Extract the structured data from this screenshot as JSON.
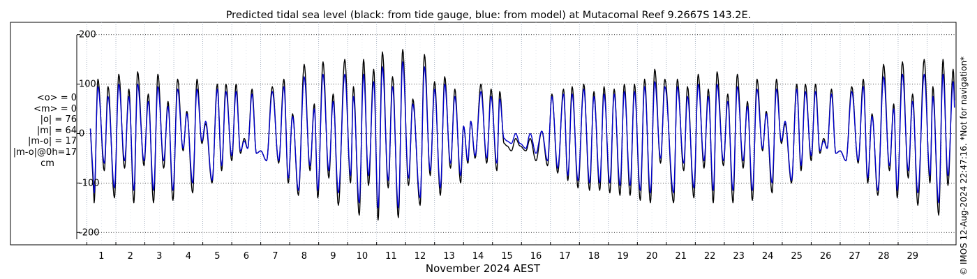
{
  "chart_data": {
    "type": "line",
    "title": "Predicted tidal sea level (black: from tide gauge, blue: from model) at Mutacomal Reef 9.2667S 143.2E.",
    "xlabel": "November 2024 AEST",
    "ylabel": "",
    "x_ticks": [
      "1",
      "2",
      "3",
      "4",
      "5",
      "6",
      "7",
      "8",
      "9",
      "10",
      "11",
      "12",
      "13",
      "14",
      "15",
      "16",
      "17",
      "18",
      "19",
      "20",
      "21",
      "22",
      "23",
      "24",
      "25",
      "26",
      "27",
      "28",
      "29"
    ],
    "y_ticks": [
      200,
      100,
      0,
      -100,
      -200
    ],
    "y_tick_labels": [
      "200",
      "100",
      "0",
      "-100",
      "-200"
    ],
    "xlim": [
      -0.35,
      30
    ],
    "ylim": [
      -225,
      225
    ],
    "grid": true,
    "series": [
      {
        "name": "black",
        "color": "#000000",
        "mean": 0,
        "rms": 76,
        "peaks": [
          [
            0.25,
            -140
          ],
          [
            0.38,
            110
          ],
          [
            0.6,
            -75
          ],
          [
            0.73,
            95
          ],
          [
            0.95,
            -130
          ],
          [
            1.1,
            120
          ],
          [
            1.3,
            -70
          ],
          [
            1.45,
            90
          ],
          [
            1.62,
            -140
          ],
          [
            1.75,
            125
          ],
          [
            1.97,
            -65
          ],
          [
            2.12,
            80
          ],
          [
            2.3,
            -140
          ],
          [
            2.45,
            120
          ],
          [
            2.65,
            -70
          ],
          [
            2.8,
            65
          ],
          [
            2.97,
            -135
          ],
          [
            3.13,
            110
          ],
          [
            3.32,
            -35
          ],
          [
            3.45,
            45
          ],
          [
            3.65,
            -120
          ],
          [
            3.8,
            110
          ],
          [
            3.97,
            -20
          ],
          [
            4.1,
            20
          ],
          [
            4.32,
            -100
          ],
          [
            4.5,
            100
          ],
          [
            4.65,
            -75
          ],
          [
            4.8,
            100
          ],
          [
            5.0,
            -55
          ],
          [
            5.15,
            100
          ],
          [
            5.3,
            -40
          ],
          [
            5.43,
            -10
          ],
          [
            5.55,
            -30
          ],
          [
            5.7,
            90
          ],
          [
            5.85,
            -40
          ],
          [
            6.0,
            -35
          ],
          [
            6.2,
            -55
          ],
          [
            6.4,
            95
          ],
          [
            6.62,
            -60
          ],
          [
            6.8,
            110
          ],
          [
            6.95,
            -100
          ],
          [
            7.1,
            40
          ],
          [
            7.3,
            -125
          ],
          [
            7.5,
            140
          ],
          [
            7.7,
            -75
          ],
          [
            7.85,
            60
          ],
          [
            7.97,
            -130
          ],
          [
            8.15,
            145
          ],
          [
            8.35,
            -90
          ],
          [
            8.5,
            80
          ],
          [
            8.68,
            -145
          ],
          [
            8.9,
            150
          ],
          [
            9.1,
            -100
          ],
          [
            9.2,
            95
          ],
          [
            9.4,
            -165
          ],
          [
            9.55,
            150
          ],
          [
            9.72,
            -105
          ],
          [
            9.9,
            130
          ],
          [
            10.05,
            -175
          ],
          [
            10.2,
            165
          ],
          [
            10.4,
            -110
          ],
          [
            10.55,
            115
          ],
          [
            10.75,
            -170
          ],
          [
            10.9,
            170
          ],
          [
            11.1,
            -105
          ],
          [
            11.25,
            70
          ],
          [
            11.5,
            -145
          ],
          [
            11.65,
            160
          ],
          [
            11.85,
            -85
          ],
          [
            12.0,
            105
          ],
          [
            12.2,
            -125
          ],
          [
            12.35,
            115
          ],
          [
            12.55,
            -70
          ],
          [
            12.7,
            90
          ],
          [
            12.9,
            -100
          ],
          [
            13.0,
            15
          ],
          [
            13.15,
            -60
          ],
          [
            13.25,
            25
          ],
          [
            13.4,
            -50
          ],
          [
            13.6,
            100
          ],
          [
            13.8,
            -60
          ],
          [
            13.95,
            90
          ],
          [
            14.15,
            -75
          ],
          [
            14.25,
            85
          ],
          [
            14.4,
            -20
          ],
          [
            14.5,
            -25
          ],
          [
            14.65,
            -35
          ],
          [
            14.8,
            -10
          ],
          [
            14.95,
            -25
          ],
          [
            15.15,
            -35
          ],
          [
            15.3,
            -10
          ],
          [
            15.5,
            -55
          ],
          [
            15.7,
            5
          ],
          [
            15.9,
            -65
          ],
          [
            16.05,
            80
          ],
          [
            16.25,
            -80
          ],
          [
            16.45,
            90
          ],
          [
            16.6,
            -95
          ],
          [
            16.75,
            95
          ],
          [
            16.95,
            -110
          ],
          [
            17.15,
            100
          ],
          [
            17.35,
            -115
          ],
          [
            17.5,
            85
          ],
          [
            17.7,
            -115
          ],
          [
            17.85,
            95
          ],
          [
            18.05,
            -120
          ],
          [
            18.2,
            90
          ],
          [
            18.4,
            -125
          ],
          [
            18.55,
            100
          ],
          [
            18.75,
            -125
          ],
          [
            18.9,
            100
          ],
          [
            19.1,
            -135
          ],
          [
            19.25,
            110
          ],
          [
            19.45,
            -140
          ],
          [
            19.6,
            130
          ],
          [
            19.8,
            -60
          ],
          [
            19.95,
            110
          ]
        ]
      },
      {
        "name": "blue",
        "color": "#0000cc",
        "mean": 0,
        "rms": 64,
        "peaks": [
          [
            0.25,
            -120
          ],
          [
            0.38,
            95
          ],
          [
            0.6,
            -60
          ],
          [
            0.73,
            75
          ],
          [
            0.95,
            -110
          ],
          [
            1.1,
            100
          ],
          [
            1.3,
            -55
          ],
          [
            1.45,
            75
          ],
          [
            1.62,
            -115
          ],
          [
            1.75,
            100
          ],
          [
            1.97,
            -55
          ],
          [
            2.12,
            65
          ],
          [
            2.3,
            -115
          ],
          [
            2.45,
            95
          ],
          [
            2.65,
            -55
          ],
          [
            2.8,
            55
          ],
          [
            2.97,
            -115
          ],
          [
            3.13,
            90
          ],
          [
            3.32,
            -30
          ],
          [
            3.45,
            40
          ],
          [
            3.65,
            -100
          ],
          [
            3.8,
            90
          ],
          [
            3.97,
            -15
          ],
          [
            4.1,
            25
          ],
          [
            4.32,
            -95
          ],
          [
            4.5,
            90
          ],
          [
            4.65,
            -65
          ],
          [
            4.8,
            85
          ],
          [
            5.0,
            -45
          ],
          [
            5.15,
            85
          ],
          [
            5.3,
            -35
          ],
          [
            5.43,
            -15
          ],
          [
            5.55,
            -30
          ],
          [
            5.7,
            80
          ],
          [
            5.85,
            -40
          ],
          [
            6.0,
            -35
          ],
          [
            6.2,
            -55
          ],
          [
            6.4,
            85
          ],
          [
            6.62,
            -55
          ],
          [
            6.8,
            95
          ],
          [
            6.95,
            -90
          ],
          [
            7.1,
            35
          ],
          [
            7.3,
            -115
          ],
          [
            7.5,
            115
          ],
          [
            7.7,
            -65
          ],
          [
            7.85,
            50
          ],
          [
            7.97,
            -115
          ],
          [
            8.15,
            120
          ],
          [
            8.35,
            -75
          ],
          [
            8.5,
            65
          ],
          [
            8.68,
            -120
          ],
          [
            8.9,
            120
          ],
          [
            9.1,
            -85
          ],
          [
            9.2,
            75
          ],
          [
            9.4,
            -140
          ],
          [
            9.55,
            120
          ],
          [
            9.72,
            -85
          ],
          [
            9.9,
            105
          ],
          [
            10.05,
            -150
          ],
          [
            10.2,
            135
          ],
          [
            10.4,
            -95
          ],
          [
            10.55,
            95
          ],
          [
            10.75,
            -150
          ],
          [
            10.9,
            145
          ],
          [
            11.1,
            -90
          ],
          [
            11.25,
            60
          ],
          [
            11.5,
            -130
          ],
          [
            11.65,
            135
          ],
          [
            11.85,
            -75
          ],
          [
            12.0,
            90
          ],
          [
            12.2,
            -110
          ],
          [
            12.35,
            100
          ],
          [
            12.55,
            -60
          ],
          [
            12.7,
            75
          ],
          [
            12.9,
            -85
          ],
          [
            13.0,
            15
          ],
          [
            13.15,
            -55
          ],
          [
            13.25,
            25
          ],
          [
            13.4,
            -45
          ],
          [
            13.6,
            85
          ],
          [
            13.8,
            -50
          ],
          [
            13.95,
            75
          ],
          [
            14.15,
            -60
          ],
          [
            14.25,
            70
          ],
          [
            14.4,
            -10
          ],
          [
            14.5,
            -15
          ],
          [
            14.65,
            -20
          ],
          [
            14.8,
            0
          ],
          [
            14.95,
            -20
          ],
          [
            15.15,
            -30
          ],
          [
            15.3,
            0
          ],
          [
            15.5,
            -40
          ],
          [
            15.7,
            5
          ],
          [
            15.9,
            -55
          ],
          [
            16.05,
            75
          ],
          [
            16.25,
            -70
          ],
          [
            16.45,
            80
          ],
          [
            16.6,
            -85
          ],
          [
            16.75,
            80
          ],
          [
            16.95,
            -95
          ],
          [
            17.15,
            90
          ],
          [
            17.35,
            -100
          ],
          [
            17.5,
            75
          ],
          [
            17.7,
            -100
          ],
          [
            17.85,
            80
          ],
          [
            18.05,
            -100
          ],
          [
            18.2,
            80
          ],
          [
            18.4,
            -105
          ],
          [
            18.55,
            85
          ],
          [
            18.75,
            -105
          ],
          [
            18.9,
            85
          ],
          [
            19.1,
            -115
          ],
          [
            19.25,
            95
          ],
          [
            19.45,
            -120
          ],
          [
            19.6,
            105
          ],
          [
            19.8,
            -50
          ],
          [
            19.95,
            95
          ]
        ]
      }
    ]
  },
  "stats": {
    "mean_obs": "<o> = 0",
    "mean_model": "<m> = 0",
    "abs_obs": "|o| = 76",
    "abs_model": "|m| = 64",
    "abs_diff": "|m-o| = 17",
    "abs_diff_0h": "|m-o|@0h=17",
    "unit": "cm"
  },
  "credit": "© IMOS 12-Aug-2024 22:47:16. *Not for navigation*"
}
